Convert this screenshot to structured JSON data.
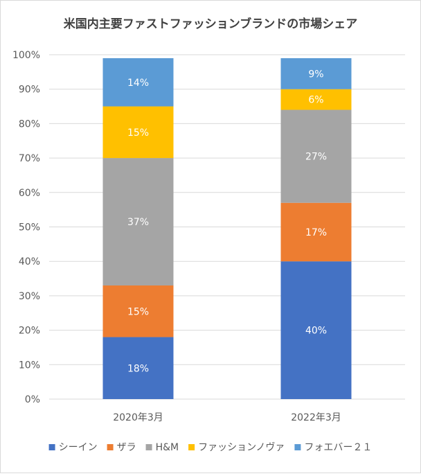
{
  "chart_data": {
    "type": "bar",
    "stacked": true,
    "title": "米国内主要ファストファッションブランドの市場シェア",
    "categories": [
      "2020年3月",
      "2022年3月"
    ],
    "series": [
      {
        "name": "シーイン",
        "color": "#4472c4",
        "values": [
          18,
          40
        ],
        "labels": [
          "18%",
          "40%"
        ]
      },
      {
        "name": "ザラ",
        "color": "#ed7d31",
        "values": [
          15,
          17
        ],
        "labels": [
          "15%",
          "17%"
        ]
      },
      {
        "name": "H&M",
        "color": "#a5a5a5",
        "values": [
          37,
          27
        ],
        "labels": [
          "37%",
          "27%"
        ]
      },
      {
        "name": "ファッションノヴァ",
        "color": "#ffc000",
        "values": [
          15,
          6
        ],
        "labels": [
          "15%",
          "6%"
        ]
      },
      {
        "name": "フォエバー２１",
        "color": "#5b9bd5",
        "values": [
          14,
          9
        ],
        "labels": [
          "14%",
          "9%"
        ]
      }
    ],
    "yticks": [
      "0%",
      "10%",
      "20%",
      "30%",
      "40%",
      "50%",
      "60%",
      "70%",
      "80%",
      "90%",
      "100%"
    ],
    "ylim": [
      0,
      100
    ],
    "xlabel": "",
    "ylabel": "",
    "grid": true,
    "legend_position": "bottom"
  }
}
